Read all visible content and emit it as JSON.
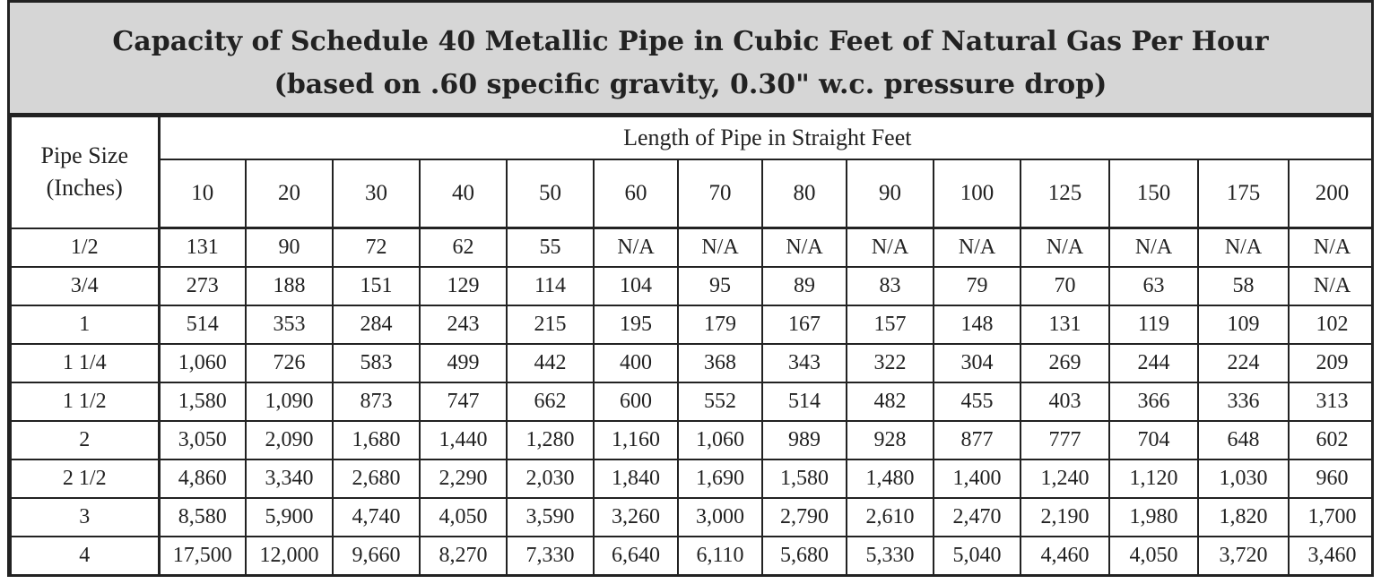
{
  "title_line1": "Capacity of Schedule 40 Metallic Pipe in Cubic Feet of Natural Gas Per Hour",
  "title_line2": "(based on .60 specific gravity, 0.30\" w.c. pressure drop)",
  "pipe_size_header": "Pipe Size (Inches)",
  "length_header": "Length of Pipe in Straight Feet",
  "lengths": [
    "10",
    "20",
    "30",
    "40",
    "50",
    "60",
    "70",
    "80",
    "90",
    "100",
    "125",
    "150",
    "175",
    "200"
  ],
  "rows": [
    {
      "size": "1/2",
      "values": [
        "131",
        "90",
        "72",
        "62",
        "55",
        "N/A",
        "N/A",
        "N/A",
        "N/A",
        "N/A",
        "N/A",
        "N/A",
        "N/A",
        "N/A"
      ]
    },
    {
      "size": "3/4",
      "values": [
        "273",
        "188",
        "151",
        "129",
        "114",
        "104",
        "95",
        "89",
        "83",
        "79",
        "70",
        "63",
        "58",
        "N/A"
      ]
    },
    {
      "size": "1",
      "values": [
        "514",
        "353",
        "284",
        "243",
        "215",
        "195",
        "179",
        "167",
        "157",
        "148",
        "131",
        "119",
        "109",
        "102"
      ]
    },
    {
      "size": "1 1/4",
      "values": [
        "1,060",
        "726",
        "583",
        "499",
        "442",
        "400",
        "368",
        "343",
        "322",
        "304",
        "269",
        "244",
        "224",
        "209"
      ]
    },
    {
      "size": "1 1/2",
      "values": [
        "1,580",
        "1,090",
        "873",
        "747",
        "662",
        "600",
        "552",
        "514",
        "482",
        "455",
        "403",
        "366",
        "336",
        "313"
      ]
    },
    {
      "size": "2",
      "values": [
        "3,050",
        "2,090",
        "1,680",
        "1,440",
        "1,280",
        "1,160",
        "1,060",
        "989",
        "928",
        "877",
        "777",
        "704",
        "648",
        "602"
      ]
    },
    {
      "size": "2 1/2",
      "values": [
        "4,860",
        "3,340",
        "2,680",
        "2,290",
        "2,030",
        "1,840",
        "1,690",
        "1,580",
        "1,480",
        "1,400",
        "1,240",
        "1,120",
        "1,030",
        "960"
      ]
    },
    {
      "size": "3",
      "values": [
        "8,580",
        "5,900",
        "4,740",
        "4,050",
        "3,590",
        "3,260",
        "3,000",
        "2,790",
        "2,610",
        "2,470",
        "2,190",
        "1,980",
        "1,820",
        "1,700"
      ]
    },
    {
      "size": "4",
      "values": [
        "17,500",
        "12,000",
        "9,660",
        "8,270",
        "7,330",
        "6,640",
        "6,110",
        "5,680",
        "5,330",
        "5,040",
        "4,460",
        "4,050",
        "3,720",
        "3,460"
      ]
    }
  ],
  "colors": {
    "title_band": "#d6d6d6",
    "text": "#222222",
    "border": "#222222"
  }
}
